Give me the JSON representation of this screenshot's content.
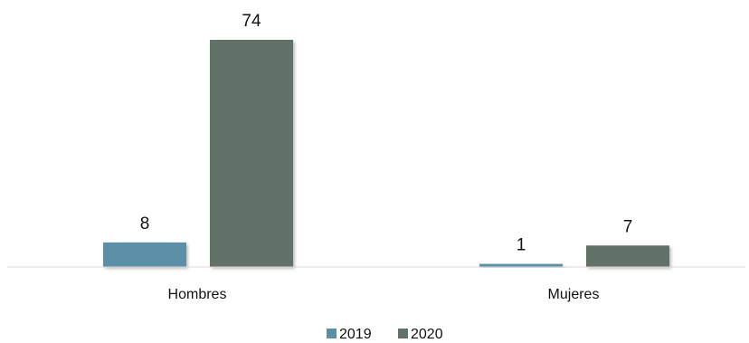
{
  "chart_data": {
    "type": "bar",
    "title": "",
    "xlabel": "",
    "ylabel": "",
    "categories": [
      "Hombres",
      "Mujeres"
    ],
    "series": [
      {
        "name": "2019",
        "values": [
          8,
          1
        ],
        "color": "#5b8fa8"
      },
      {
        "name": "2020",
        "values": [
          74,
          7
        ],
        "color": "#627268"
      }
    ],
    "ylim": [
      0,
      74
    ],
    "grid": false,
    "legend": "bottom",
    "axis_color": "#d9d9d9"
  }
}
